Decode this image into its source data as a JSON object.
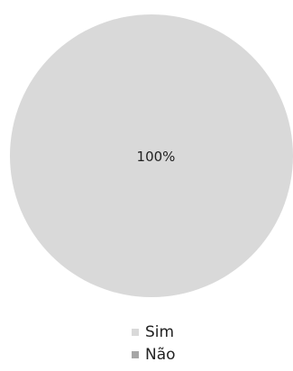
{
  "chart_data": {
    "type": "pie",
    "title": "",
    "categories": [
      "Sim",
      "Não"
    ],
    "values": [
      100,
      0
    ],
    "labels": [
      "100%",
      ""
    ],
    "colors": [
      "#d9d9d9",
      "#a6a6a6"
    ],
    "legend_position": "bottom"
  }
}
